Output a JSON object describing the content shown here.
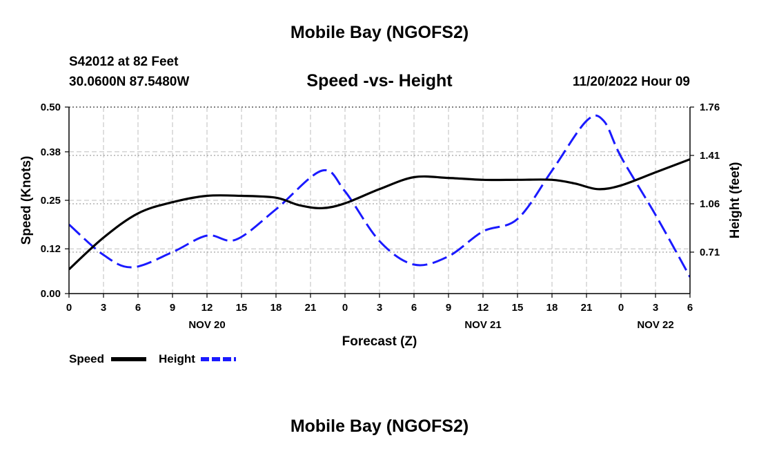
{
  "page": {
    "title": "Mobile Bay (NGOFS2)",
    "station_line": "S42012 at 82 Feet",
    "coords_line": "30.0600N  87.5480W",
    "chart_title": "Speed -vs- Height",
    "timestamp": "11/20/2022 Hour 09",
    "footer_title": "Mobile Bay (NGOFS2)"
  },
  "chart_data": {
    "type": "line",
    "title": "Speed -vs- Height",
    "xlabel": "Forecast (Z)",
    "ylabel": "Speed (Knots)",
    "y2label": "Height (feet)",
    "xlim": [
      0,
      54
    ],
    "ylim": [
      0,
      0.5
    ],
    "y2lim": [
      0.41,
      1.76
    ],
    "grid": true,
    "legend_position": "bottom-left",
    "x_ticks": [
      0,
      3,
      6,
      9,
      12,
      15,
      18,
      21,
      24,
      27,
      30,
      33,
      36,
      39,
      42,
      45,
      48,
      51,
      54
    ],
    "x_tick_labels": [
      "0",
      "3",
      "6",
      "9",
      "12",
      "15",
      "18",
      "21",
      "0",
      "3",
      "6",
      "9",
      "12",
      "15",
      "18",
      "21",
      "0",
      "3",
      "6"
    ],
    "date_labels": [
      {
        "x": 12,
        "label": "NOV 20"
      },
      {
        "x": 36,
        "label": "NOV 21"
      },
      {
        "x": 51,
        "label": "NOV 22"
      }
    ],
    "y_ticks": [
      0.0,
      0.12,
      0.25,
      0.38,
      0.5
    ],
    "y_tick_labels": [
      "0.00",
      "0.12",
      "0.25",
      "0.38",
      "0.50"
    ],
    "y2_ticks": [
      0.71,
      1.06,
      1.41,
      1.76
    ],
    "y2_tick_labels": [
      "0.71",
      "1.06",
      "1.41",
      "1.76"
    ],
    "series": [
      {
        "name": "Speed",
        "axis": "left",
        "color": "#000000",
        "dash": "solid",
        "x": [
          0,
          3,
          6,
          9,
          12,
          15,
          18,
          20,
          22,
          24,
          27,
          30,
          33,
          36,
          39,
          42,
          44,
          46,
          48,
          51,
          54
        ],
        "values": [
          0.065,
          0.15,
          0.215,
          0.245,
          0.262,
          0.262,
          0.257,
          0.237,
          0.229,
          0.242,
          0.28,
          0.312,
          0.31,
          0.305,
          0.305,
          0.305,
          0.295,
          0.28,
          0.29,
          0.325,
          0.36
        ]
      },
      {
        "name": "Height",
        "axis": "right",
        "color": "#1a1aff",
        "dash": "dashed",
        "x": [
          0,
          3,
          5.5,
          9,
          12,
          14.5,
          18,
          22,
          24,
          27,
          30,
          33,
          36,
          39,
          42,
          45,
          46.5,
          48,
          51,
          54
        ],
        "values": [
          0.91,
          0.69,
          0.6,
          0.71,
          0.83,
          0.8,
          1.02,
          1.3,
          1.15,
          0.79,
          0.62,
          0.68,
          0.86,
          0.95,
          1.3,
          1.66,
          1.66,
          1.4,
          0.98,
          0.53
        ]
      }
    ]
  }
}
